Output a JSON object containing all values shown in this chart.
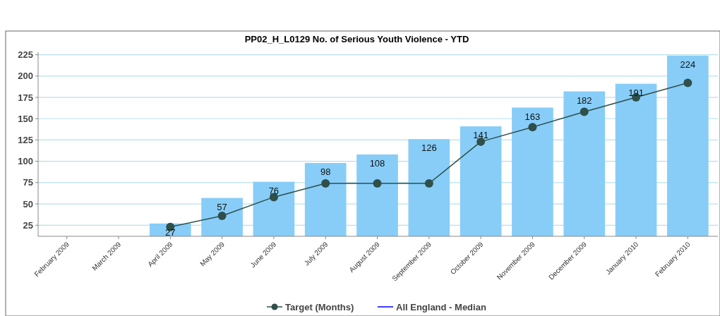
{
  "chart_data": {
    "type": "bar",
    "title": "PP02_H_L0129 No. of Serious Youth Violence - YTD",
    "categories": [
      "February 2009",
      "March 2009",
      "April 2009",
      "May 2009",
      "June 2009",
      "July 2009",
      "August 2009",
      "September 2009",
      "October 2009",
      "November 2009",
      "December 2009",
      "January 2010",
      "February 2010"
    ],
    "series": [
      {
        "color": "#87cdf8",
        "values": [
          null,
          null,
          27,
          57,
          76,
          98,
          108,
          126,
          141,
          163,
          182,
          191,
          224
        ],
        "value_labels": [
          null,
          null,
          "27",
          "57",
          "76",
          "98",
          "108",
          "126",
          "141",
          "163",
          "182",
          "191",
          "224"
        ]
      },
      {
        "type": "line",
        "name": "Target (Months)",
        "color": "#2f4f4a",
        "marker": "circle",
        "values": [
          null,
          null,
          23,
          36,
          58,
          74,
          74,
          74,
          123,
          140,
          158,
          175,
          192
        ]
      },
      {
        "type": "line",
        "name": "All England - Median",
        "color": "#0000ff",
        "marker": "none",
        "values": [
          null,
          null,
          null,
          null,
          null,
          null,
          null,
          null,
          null,
          null,
          null,
          null,
          null
        ]
      }
    ],
    "ylim": [
      12,
      228
    ],
    "yticks": [
      25,
      50,
      75,
      100,
      125,
      150,
      175,
      200,
      225
    ],
    "grid": "y",
    "legend": "bottom"
  }
}
